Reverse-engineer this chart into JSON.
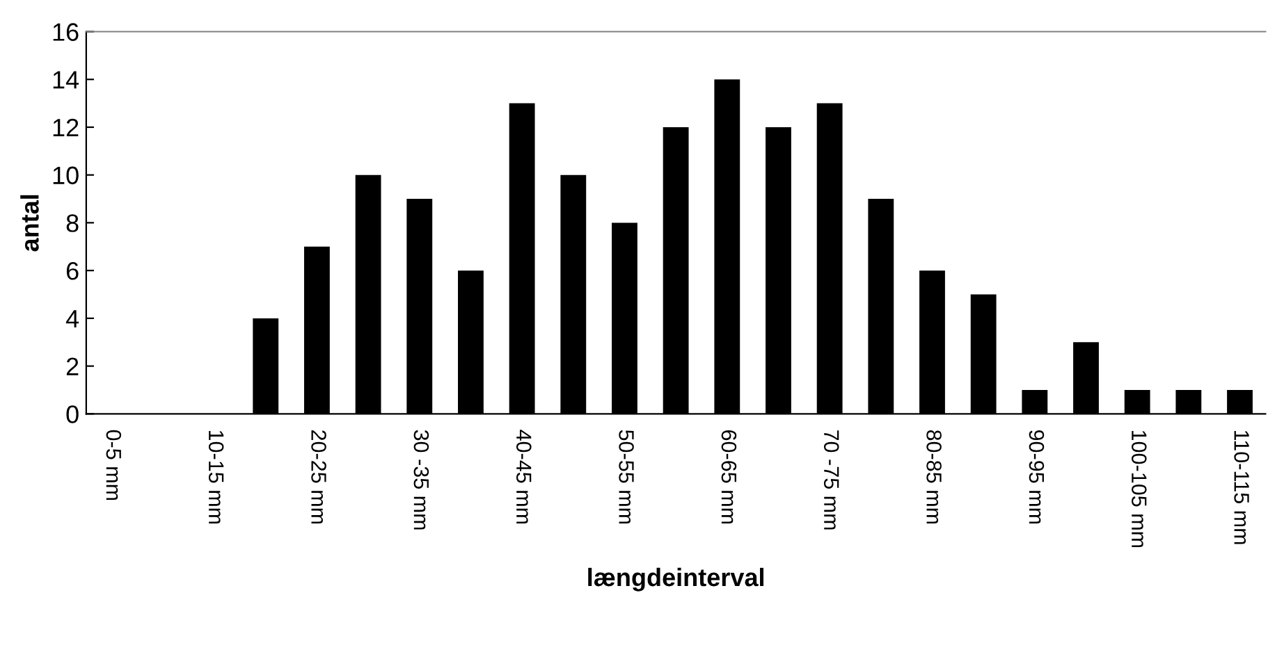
{
  "chart_data": {
    "type": "bar",
    "xlabel": "længdeinterval",
    "ylabel": "antal",
    "categories": [
      "0-5 mm",
      null,
      "10-15 mm",
      null,
      "20-25 mm",
      null,
      "30 -35 mm",
      null,
      "40-45 mm",
      null,
      "50-55 mm",
      null,
      "60-65 mm",
      null,
      "70 -75 mm",
      null,
      "80-85 mm",
      null,
      "90-95 mm",
      null,
      "100-105 mm",
      null,
      "110-115 mm"
    ],
    "values": [
      0,
      0,
      0,
      4,
      7,
      10,
      9,
      6,
      13,
      10,
      8,
      12,
      14,
      12,
      13,
      9,
      6,
      5,
      1,
      3,
      1,
      1,
      1
    ],
    "color": "#000000",
    "ylim": [
      0,
      16
    ],
    "yticks": [
      0,
      2,
      4,
      6,
      8,
      10,
      12,
      14,
      16
    ],
    "grid": false,
    "legend": false
  }
}
